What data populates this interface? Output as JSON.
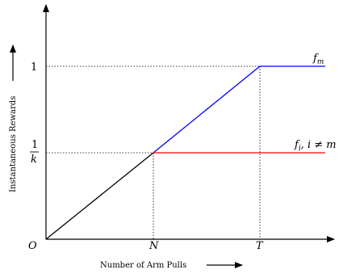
{
  "axes": {
    "x_label": "Number of Arm Pulls",
    "y_label": "Instantaneous Rewards",
    "origin_label": "O",
    "x_ticks": [
      "N",
      "T"
    ],
    "y_ticks": {
      "one": "1",
      "frac_numerator": "1",
      "frac_denominator": "k"
    }
  },
  "curves": {
    "f_m_label": "f",
    "f_m_sub": "m",
    "f_i_label": "f",
    "f_i_sub": "i",
    "f_i_cond": ", i ≠ m"
  },
  "colors": {
    "shared": "#000000",
    "f_m": "#0000ff",
    "f_i": "#ff0000",
    "guides": "#000000"
  }
}
